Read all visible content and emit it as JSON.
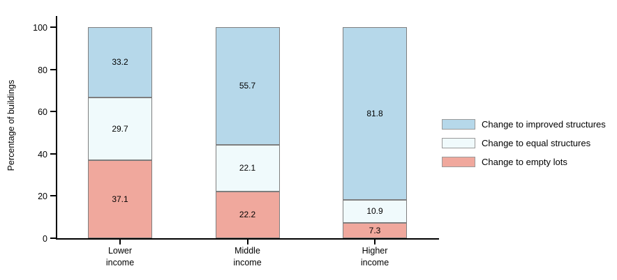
{
  "chart_data": {
    "type": "bar",
    "stacked": true,
    "title": "",
    "xlabel": "",
    "ylabel": "Percentage of buildings",
    "ylim": [
      0,
      100
    ],
    "yticks": [
      0,
      20,
      40,
      60,
      80,
      100
    ],
    "grid": false,
    "legend_position": "right",
    "categories": [
      "Lower\nincome",
      "Middle\nincome",
      "Higher\nincome"
    ],
    "series": [
      {
        "name": "Change to improved structures",
        "color": "#b6d8ea",
        "values": [
          33.2,
          55.7,
          81.8
        ]
      },
      {
        "name": "Change to equal structures",
        "color": "#f0fafc",
        "values": [
          29.7,
          22.1,
          10.9
        ]
      },
      {
        "name": "Change to empty lots",
        "color": "#f0a89d",
        "values": [
          37.1,
          22.2,
          7.3
        ]
      }
    ],
    "colors": {
      "axis": "#000000",
      "segment_border": "#7e7e7e",
      "label_text": "#000000"
    }
  }
}
